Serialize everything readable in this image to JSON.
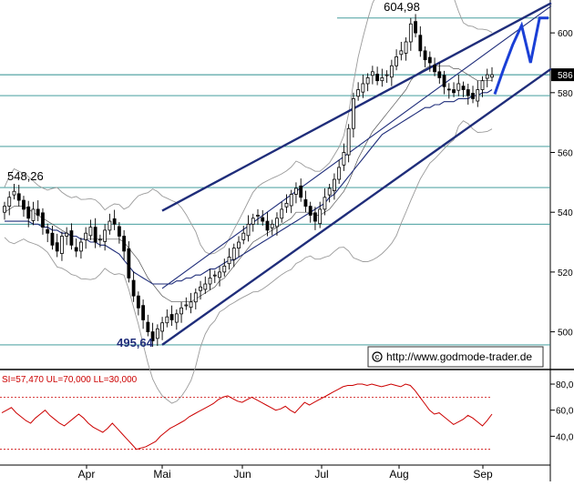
{
  "chart_data": [
    {
      "type": "candlestick",
      "title": "",
      "xlabel": "",
      "ylabel": "",
      "ylim": [
        488,
        611
      ],
      "y_ticks": [
        "500",
        "520",
        "540",
        "560",
        "580",
        "600"
      ],
      "current_price_label": "586",
      "annotations": {
        "high": "604,98",
        "low": "495,64",
        "left_high": "548,26",
        "watermark": "http://www.godmode-trader.de",
        "watermark_icon": "copyright-icon"
      },
      "horizontal_levels": [
        604.98,
        586.0,
        579.0,
        562.0,
        548.26,
        536.0,
        495.64
      ],
      "trend_channel": {
        "upper": {
          "from": [
            "Mai",
            540.5
          ],
          "to": [
            "Sep",
            610.0
          ]
        },
        "middle": {
          "from": [
            "Mai",
            514.5
          ],
          "to": [
            "Sep",
            609.0
          ]
        },
        "lower": {
          "from": [
            "Mai",
            495.64
          ],
          "to": [
            "Sep",
            588.0
          ]
        }
      },
      "forecast_path": [
        579.5,
        588.0,
        596.0,
        602.5,
        590.0,
        604.98,
        604.98
      ],
      "candles_close": [
        542,
        545,
        547,
        544,
        541,
        538,
        541,
        539,
        535,
        533,
        529,
        527,
        532,
        533,
        529,
        527,
        530,
        533,
        535,
        530,
        531,
        534,
        537,
        536,
        532,
        527,
        518,
        512,
        508,
        504,
        500,
        497,
        501,
        503,
        505,
        504,
        506,
        508,
        509,
        510,
        513,
        515,
        516,
        518,
        519,
        520,
        522,
        525,
        528,
        530,
        533,
        536,
        538,
        539,
        537,
        534,
        536,
        538,
        541,
        543,
        546,
        548,
        545,
        542,
        539,
        537,
        541,
        545,
        548,
        551,
        555,
        560,
        568,
        578,
        581,
        583,
        585,
        587,
        584,
        585,
        586,
        589,
        592,
        594,
        597,
        603,
        600,
        594,
        591,
        590,
        587,
        585,
        582,
        581,
        580,
        583,
        581,
        579,
        578,
        581,
        584,
        586,
        586
      ],
      "bollinger_mid": [
        540,
        541,
        542,
        542,
        542,
        541,
        540,
        539,
        538,
        537,
        536,
        535,
        534,
        533,
        532,
        532,
        531,
        531,
        531,
        531,
        531,
        531,
        531,
        531,
        531,
        530,
        528,
        526,
        524,
        521,
        518,
        516,
        514,
        512,
        511,
        510,
        510,
        510,
        510,
        510,
        511,
        512,
        513,
        514,
        515,
        517,
        518,
        520,
        522,
        524,
        526,
        528,
        530,
        531,
        532,
        533,
        534,
        535,
        536,
        537,
        538,
        540,
        540,
        540,
        540,
        539,
        539,
        540,
        541,
        543,
        545,
        547,
        550,
        554,
        558,
        561,
        564,
        567,
        569,
        571,
        573,
        575,
        577,
        579,
        581,
        584,
        586,
        587,
        588,
        589,
        589,
        589,
        589,
        589,
        588,
        588,
        587,
        586,
        585,
        584,
        584,
        584,
        584
      ],
      "moving_average": [
        537,
        537,
        537,
        537,
        537,
        537,
        536,
        536,
        535,
        535,
        534,
        534,
        533,
        533,
        532,
        532,
        531,
        531,
        530,
        530,
        529,
        529,
        528,
        527,
        526,
        524,
        522,
        520,
        519,
        518,
        517,
        516,
        516,
        516,
        516,
        516,
        517,
        517,
        518,
        518,
        519,
        519,
        520,
        521,
        521,
        522,
        523,
        524,
        524,
        525,
        526,
        527,
        528,
        529,
        530,
        531,
        532,
        533,
        534,
        535,
        536,
        537,
        538,
        539,
        540,
        541,
        542,
        543,
        545,
        546,
        548,
        550,
        552,
        554,
        556,
        558,
        560,
        562,
        564,
        566,
        567,
        568,
        569,
        570,
        571,
        572,
        573,
        574,
        575,
        575,
        576,
        576,
        577,
        577,
        577,
        578,
        578,
        578,
        579,
        579,
        580,
        580,
        581
      ]
    },
    {
      "type": "line",
      "title": "",
      "legend_label": "SI=57,470 UL=70,000 LL=30,000",
      "ylim": [
        20,
        87
      ],
      "y_ticks": [
        "80,0",
        "60,0",
        "40,0"
      ],
      "reference_lines": [
        70,
        30
      ],
      "x_tick_labels": [
        "Apr",
        "Mai",
        "Jun",
        "Jul",
        "Aug",
        "Sep"
      ],
      "values": [
        58,
        60,
        62,
        58,
        55,
        52,
        50,
        54,
        57,
        60,
        56,
        53,
        50,
        48,
        51,
        54,
        57,
        54,
        50,
        47,
        45,
        43,
        46,
        50,
        46,
        42,
        38,
        34,
        30,
        31,
        32,
        34,
        36,
        40,
        43,
        46,
        48,
        50,
        52,
        55,
        57,
        59,
        61,
        63,
        65,
        68,
        70,
        71,
        69,
        67,
        66,
        68,
        70,
        68,
        66,
        64,
        62,
        60,
        61,
        63,
        60,
        58,
        62,
        66,
        64,
        66,
        68,
        70,
        72,
        74,
        76,
        78,
        79,
        79,
        80,
        80,
        79,
        80,
        79,
        78,
        79,
        80,
        79,
        78,
        80,
        79,
        75,
        70,
        65,
        60,
        57,
        58,
        55,
        52,
        49,
        51,
        53,
        56,
        54,
        51,
        48,
        52,
        57
      ]
    }
  ]
}
